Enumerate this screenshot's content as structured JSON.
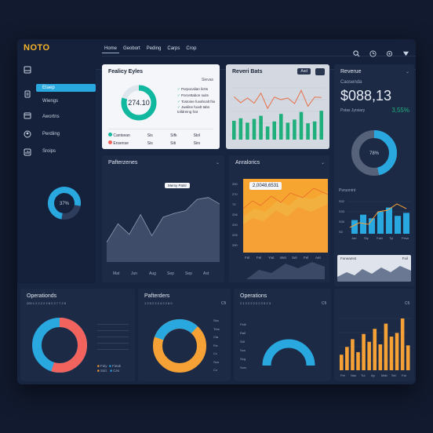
{
  "app": {
    "logo": "NOTO"
  },
  "nav": {
    "tabs": [
      "Home",
      "Geobort",
      "Peding",
      "Carps",
      "Crop"
    ]
  },
  "sidebar": {
    "items": [
      "Etaep",
      "Wiengs",
      "Awortns",
      "Perdiing",
      "Sroips"
    ],
    "donut_label": "37%"
  },
  "fealty_card": {
    "title": "Fealicy Eyles",
    "dropdown": "Sievas",
    "donut_value": "274.10",
    "checks": [
      "Porpocalian lictts",
      "Porcettabon suits",
      "Tostoine fuvahcalt ftio",
      "Jwaline fuodt tabs tolldreing frat"
    ],
    "rows": [
      {
        "label": "Cantsean",
        "v1": "Sis",
        "v2": "Sifk",
        "v3": "Stol"
      },
      {
        "label": "Ensense",
        "v1": "Sis",
        "v2": "Siti",
        "v3": "Sirs"
      }
    ]
  },
  "recent_card": {
    "title": "Reveri Bats",
    "button": "Asd",
    "values": [
      60,
      68,
      54,
      66,
      76,
      42,
      58,
      82,
      54,
      64,
      88,
      52,
      58,
      92
    ]
  },
  "revenue_card": {
    "title": "Reverue",
    "subtitle": "Caosenda",
    "amount": "$088,13",
    "sublabel": "Pstas Jyrsiary",
    "change": "3,55%",
    "donut_label": "78%",
    "chart_label": "Psruonint",
    "bars": [
      0.46,
      0.64,
      0.52,
      0.74,
      0.88,
      0.6,
      0.7
    ],
    "x_labels": [
      "Jan",
      "Sty",
      "Fabi",
      "Tyl",
      "Fesa"
    ],
    "y_labels": [
      "S02",
      "S33",
      "S30",
      "S0"
    ],
    "footer_left": "Foneamst",
    "footer_right": "Foil"
  },
  "performance_card": {
    "title": "Pafterzenes",
    "tooltip": "Mersy Patsl",
    "x_labels": [
      "Mat",
      "Jun",
      "Aug",
      "Sep",
      "Sep",
      "Ast"
    ],
    "values": [
      0.3,
      0.58,
      0.42,
      0.72,
      0.4,
      0.68,
      0.74,
      0.78,
      0.95,
      0.98,
      0.88
    ]
  },
  "analytics_card": {
    "title": "Anralorics",
    "tooltip": "2,0048,6531",
    "x_labels": [
      "Fel",
      "Fel",
      "Ywt",
      "Wet",
      "Sel",
      "Fel",
      "Aet"
    ],
    "y_labels": [
      "250",
      "270",
      "70",
      "206",
      "200",
      "205",
      "290"
    ],
    "ylabel": "Pastrmlle"
  },
  "operations1": {
    "title": "Operationds",
    "subtitle": "200 1 2 2 2 2 2 8 2 2 7 7 2 6",
    "legend": [
      "Faiy",
      "Fieak",
      "Ssiz",
      "Ces"
    ]
  },
  "operations2": {
    "title": "Pafterders",
    "subtitle": "1 2 5 2 2 2 4 2 2 6 0",
    "right_label": "Cfi",
    "legend": [
      "Sirs",
      "Trbs",
      "Cfa",
      "Fie",
      "Cc",
      "Sza",
      "Co"
    ]
  },
  "operations3": {
    "title": "Operations",
    "subtitle": "2 1 2 2 2 2 2 2 2 5 2 3",
    "right_label": "Cfi",
    "axis": [
      "Fetil",
      "Rall",
      "Stif",
      "Sos",
      "Seg",
      "Sorc"
    ]
  },
  "operations4": {
    "title": "",
    "right_label": "Cfi",
    "bars": [
      0.3,
      0.45,
      0.6,
      0.35,
      0.7,
      0.55,
      0.8,
      0.5,
      0.9,
      0.65,
      0.72,
      1.0,
      0.48
    ],
    "x_labels": [
      "Fet",
      "Nas",
      "Tul",
      "Ap",
      "Mab",
      "Sel",
      "Far"
    ]
  },
  "colors": {
    "accent": "#29a8e0",
    "orange": "#f6a135",
    "red": "#f2635e",
    "green": "#1eaf7b",
    "teal": "#10b8a0"
  }
}
